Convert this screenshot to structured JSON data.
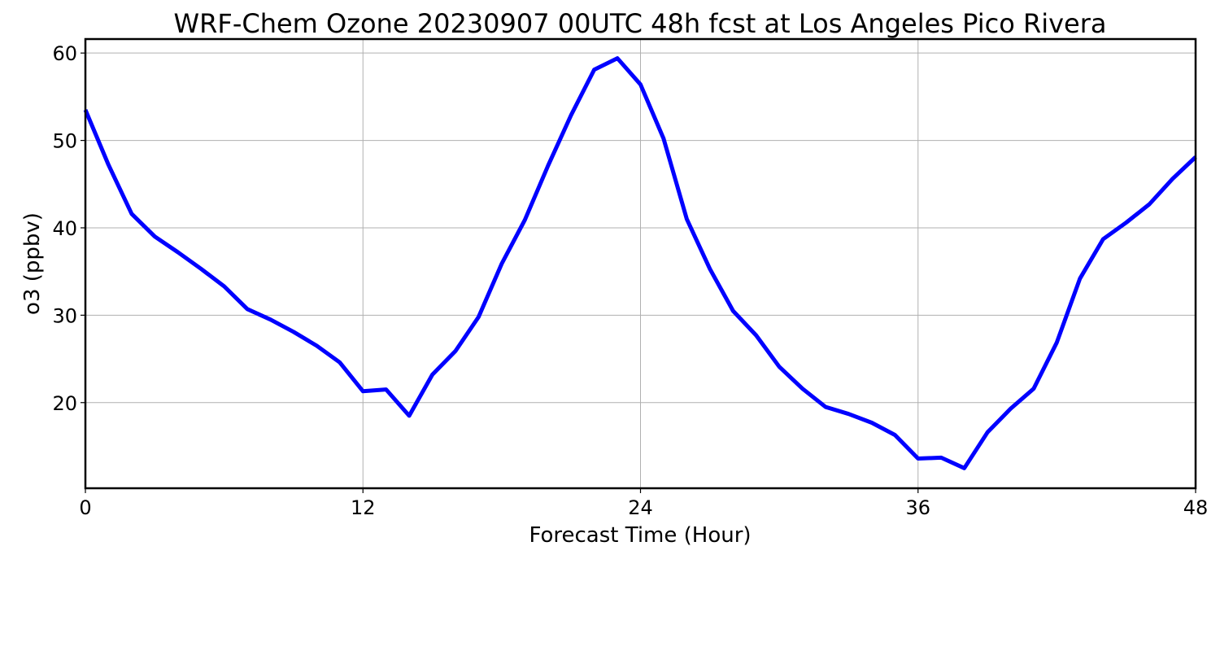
{
  "chart_data": {
    "type": "line",
    "title": "WRF-Chem Ozone  20230907 00UTC 48h fcst at Los Angeles Pico Rivera",
    "xlabel": "Forecast Time (Hour)",
    "ylabel": "o3  (ppbv)",
    "xlim": [
      0,
      48
    ],
    "ylim": [
      10.2,
      61.6
    ],
    "xticks": [
      0,
      12,
      24,
      36,
      48
    ],
    "xtick_labels": [
      "0",
      "12",
      "24",
      "36",
      "48"
    ],
    "yticks": [
      20,
      30,
      40,
      50,
      60
    ],
    "ytick_labels": [
      "20",
      "30",
      "40",
      "50",
      "60"
    ],
    "grid": true,
    "series": [
      {
        "color": "#0000ff",
        "x": [
          0,
          1,
          2,
          3,
          4,
          5,
          6,
          7,
          8,
          9,
          10,
          11,
          12,
          13,
          14,
          15,
          16,
          17,
          18,
          19,
          20,
          21,
          22,
          23,
          24,
          25,
          26,
          27,
          28,
          29,
          30,
          31,
          32,
          33,
          34,
          35,
          36,
          37,
          38,
          39,
          40,
          41,
          42,
          43,
          44,
          45,
          46,
          47,
          48
        ],
        "values": [
          53.5,
          47.2,
          41.6,
          39.0,
          37.2,
          35.3,
          33.3,
          30.7,
          29.5,
          28.1,
          26.5,
          24.6,
          21.3,
          21.5,
          18.5,
          23.2,
          25.9,
          29.8,
          35.9,
          40.9,
          47.1,
          52.9,
          58.1,
          59.4,
          56.4,
          50.2,
          41.0,
          35.3,
          30.5,
          27.7,
          24.1,
          21.6,
          19.5,
          18.7,
          17.7,
          16.3,
          13.6,
          13.7,
          12.5,
          16.6,
          19.3,
          21.6,
          26.9,
          34.2,
          38.7,
          40.6,
          42.7,
          45.6,
          48.1
        ]
      }
    ]
  }
}
